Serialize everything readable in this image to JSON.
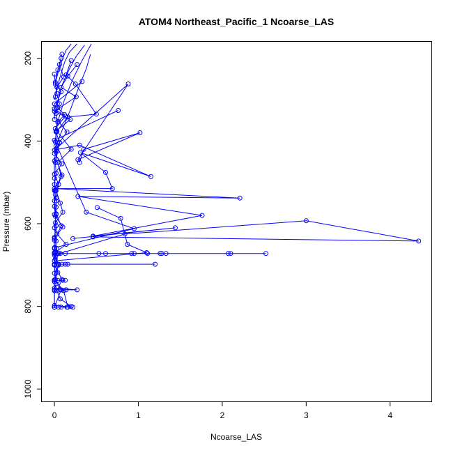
{
  "chart_data": {
    "type": "line",
    "title": "ATOM4 Northeast_Pacific_1 Ncoarse_LAS",
    "xlabel": "Ncoarse_LAS",
    "ylabel": "Pressure (mbar)",
    "xlim": [
      -0.15,
      4.5
    ],
    "ylim": [
      1030,
      160
    ],
    "y_reversed": true,
    "x_ticks": [
      0,
      1,
      2,
      3,
      4
    ],
    "y_ticks": [
      200,
      400,
      600,
      800,
      1000
    ],
    "grid": false,
    "legend": "none",
    "line_color": "#0000ff",
    "marker": "open-circle",
    "series": [
      {
        "values": [
          [
            0.0,
            238
          ],
          [
            0.01,
            262
          ],
          [
            0.03,
            285
          ],
          [
            0.06,
            310
          ],
          [
            0.02,
            333
          ],
          [
            0.04,
            355
          ],
          [
            0.02,
            378
          ],
          [
            0.01,
            402
          ],
          [
            0.03,
            425
          ],
          [
            0.01,
            452
          ],
          [
            0.02,
            478
          ],
          [
            0.0,
            505
          ],
          [
            0.01,
            530
          ],
          [
            0.0,
            558
          ],
          [
            0.01,
            582
          ],
          [
            0.02,
            605
          ],
          [
            0.0,
            633
          ],
          [
            0.03,
            660
          ],
          [
            0.01,
            685
          ],
          [
            0.05,
            698
          ],
          [
            0.0,
            720
          ],
          [
            0.02,
            745
          ],
          [
            0.0,
            762
          ],
          [
            0.0,
            802
          ]
        ]
      },
      {
        "values": [
          [
            0.09,
            190
          ],
          [
            0.06,
            215
          ],
          [
            0.11,
            245
          ],
          [
            0.03,
            270
          ],
          [
            0.01,
            293
          ],
          [
            0.04,
            320
          ],
          [
            0.12,
            336
          ],
          [
            0.05,
            353
          ],
          [
            0.15,
            378
          ],
          [
            0.06,
            403
          ],
          [
            0.0,
            430
          ],
          [
            0.09,
            455
          ],
          [
            0.0,
            480
          ],
          [
            0.05,
            505
          ],
          [
            0.02,
            538
          ],
          [
            0.02,
            560
          ],
          [
            0.0,
            578
          ],
          [
            0.1,
            608
          ],
          [
            0.0,
            636
          ],
          [
            0.0,
            660
          ],
          [
            0.05,
            672
          ],
          [
            0.0,
            700
          ],
          [
            0.04,
            718
          ],
          [
            0.0,
            740
          ],
          [
            0.0,
            802
          ]
        ]
      },
      {
        "values": [
          [
            0.08,
            200
          ],
          [
            0.04,
            228
          ],
          [
            0.01,
            258
          ],
          [
            0.08,
            281
          ],
          [
            0.0,
            322
          ],
          [
            0.13,
            340
          ],
          [
            0.01,
            370
          ],
          [
            0.06,
            405
          ],
          [
            0.02,
            444
          ],
          [
            0.09,
            482
          ],
          [
            0.02,
            520
          ],
          [
            0.07,
            550
          ],
          [
            0.1,
            572
          ],
          [
            0.01,
            598
          ],
          [
            0.03,
            625
          ],
          [
            0.14,
            650
          ],
          [
            0.01,
            670
          ],
          [
            0.0,
            698
          ],
          [
            0.01,
            735
          ],
          [
            0.08,
            760
          ],
          [
            0.0,
            802
          ]
        ]
      },
      {
        "values": [
          [
            0.2,
            205
          ],
          [
            0.14,
            240
          ],
          [
            0.25,
            262
          ],
          [
            0.5,
            335
          ],
          [
            0.16,
            342
          ],
          [
            0.03,
            376
          ],
          [
            0.2,
            420
          ],
          [
            0.04,
            452
          ],
          [
            0.08,
            486
          ],
          [
            0.0,
            520
          ],
          [
            0.02,
            545
          ],
          [
            0.02,
            576
          ],
          [
            0.08,
            605
          ],
          [
            0.0,
            640
          ],
          [
            0.0,
            670
          ],
          [
            0.0,
            700
          ],
          [
            0.09,
            735
          ],
          [
            0.03,
            762
          ],
          [
            0.07,
            782
          ],
          [
            0.2,
            800
          ]
        ]
      },
      {
        "values": [
          [
            0.27,
            215
          ],
          [
            0.16,
            243
          ],
          [
            0.08,
            270
          ],
          [
            0.26,
            293
          ],
          [
            0.0,
            328
          ],
          [
            0.19,
            348
          ],
          [
            0.02,
            376
          ],
          [
            0.02,
            412
          ],
          [
            0.0,
            448
          ],
          [
            0.0,
            490
          ],
          [
            0.01,
            520
          ],
          [
            0.0,
            545
          ],
          [
            0.02,
            578
          ],
          [
            0.0,
            610
          ],
          [
            0.02,
            642
          ],
          [
            0.0,
            672
          ],
          [
            0.05,
            700
          ],
          [
            0.0,
            736
          ],
          [
            0.11,
            762
          ],
          [
            0.16,
            802
          ]
        ]
      },
      {
        "values": [
          [
            0.0,
            802
          ],
          [
            0.05,
            802
          ],
          [
            0.08,
            802
          ],
          [
            0.15,
            802
          ],
          [
            0.22,
            802
          ],
          [
            0.0,
            798
          ]
        ]
      },
      {
        "values": [
          [
            0.0,
            760
          ],
          [
            0.07,
            760
          ],
          [
            0.14,
            760
          ],
          [
            0.27,
            760
          ],
          [
            0.0,
            756
          ]
        ]
      },
      {
        "values": [
          [
            0.1,
            737
          ],
          [
            0.04,
            737
          ],
          [
            0.13,
            737
          ],
          [
            0.0,
            737
          ]
        ]
      },
      {
        "values": [
          [
            0.0,
            698
          ],
          [
            0.04,
            698
          ],
          [
            0.09,
            698
          ],
          [
            0.13,
            698
          ],
          [
            0.16,
            698
          ],
          [
            1.2,
            698
          ]
        ]
      },
      {
        "values": [
          [
            0.0,
            672
          ],
          [
            0.04,
            672
          ],
          [
            0.07,
            672
          ],
          [
            0.13,
            672
          ],
          [
            0.53,
            672
          ],
          [
            0.61,
            672
          ],
          [
            0.92,
            672
          ],
          [
            0.95,
            672
          ],
          [
            1.11,
            672
          ],
          [
            1.26,
            672
          ],
          [
            1.28,
            672
          ],
          [
            1.33,
            672
          ],
          [
            2.07,
            672
          ],
          [
            2.1,
            672
          ],
          [
            2.52,
            672
          ]
        ]
      },
      {
        "values": [
          [
            0.22,
            636
          ],
          [
            1.44,
            610
          ],
          [
            0.46,
            630
          ],
          [
            1.76,
            580
          ],
          [
            0.28,
            534
          ],
          [
            2.21,
            538
          ],
          [
            0.0,
            515
          ],
          [
            0.69,
            515
          ],
          [
            0.61,
            476
          ],
          [
            0.31,
            428
          ],
          [
            1.15,
            486
          ],
          [
            0.3,
            410
          ],
          [
            0.02,
            421
          ]
        ]
      },
      {
        "values": [
          [
            0.3,
            452
          ],
          [
            0.35,
            420
          ],
          [
            1.02,
            380
          ],
          [
            0.28,
            445
          ],
          [
            0.88,
            262
          ],
          [
            0.0,
            422
          ]
        ]
      },
      {
        "values": [
          [
            0.76,
            326
          ],
          [
            0.0,
            398
          ],
          [
            0.38,
            572
          ],
          [
            0.95,
            612
          ],
          [
            0.0,
            658
          ]
        ]
      },
      {
        "values": [
          [
            0.51,
            561
          ],
          [
            0.79,
            587
          ],
          [
            0.87,
            650
          ],
          [
            1.1,
            670
          ],
          [
            0.0,
            690
          ]
        ]
      },
      {
        "values": [
          [
            0.33,
            256
          ],
          [
            0.0,
            310
          ],
          [
            0.0,
            348
          ]
        ]
      },
      {
        "values": [
          [
            0.46,
            632
          ],
          [
            4.34,
            642
          ],
          [
            3.0,
            593
          ],
          [
            0.84,
            625
          ],
          [
            0.0,
            676
          ]
        ]
      }
    ],
    "envelope_lines": [
      {
        "values": [
          [
            0.01,
            260
          ],
          [
            0.05,
            230
          ],
          [
            0.1,
            200
          ],
          [
            0.14,
            180
          ],
          [
            0.2,
            165
          ]
        ]
      },
      {
        "values": [
          [
            0.0,
            300
          ],
          [
            0.06,
            250
          ],
          [
            0.12,
            210
          ],
          [
            0.18,
            185
          ],
          [
            0.27,
            165
          ]
        ]
      },
      {
        "values": [
          [
            0.0,
            340
          ],
          [
            0.08,
            270
          ],
          [
            0.18,
            225
          ],
          [
            0.26,
            195
          ],
          [
            0.36,
            168
          ]
        ]
      },
      {
        "values": [
          [
            0.0,
            380
          ],
          [
            0.12,
            300
          ],
          [
            0.22,
            250
          ],
          [
            0.33,
            205
          ],
          [
            0.44,
            165
          ]
        ]
      },
      {
        "values": [
          [
            0.0,
            420
          ],
          [
            0.18,
            330
          ],
          [
            0.3,
            265
          ],
          [
            0.38,
            225
          ],
          [
            0.43,
            190
          ]
        ]
      }
    ]
  }
}
